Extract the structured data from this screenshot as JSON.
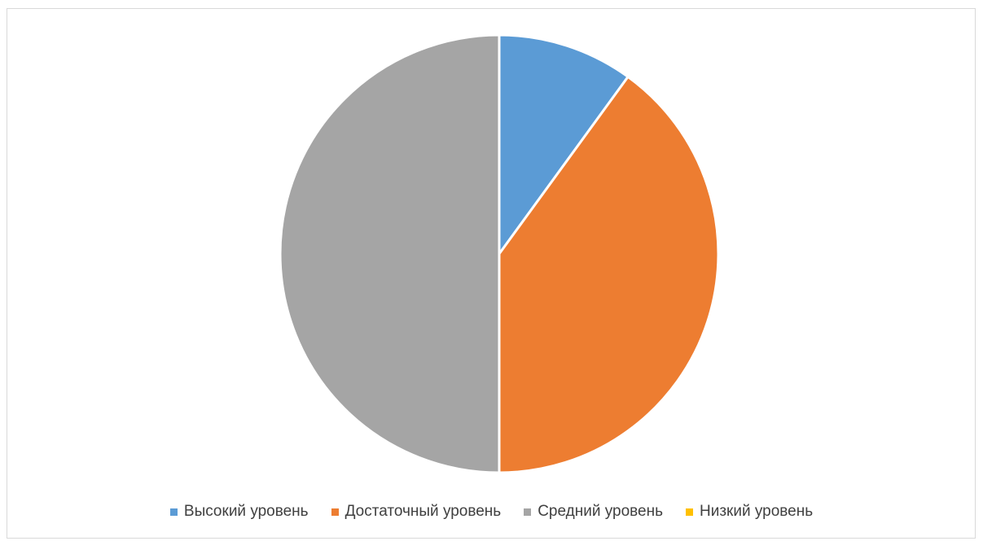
{
  "chart_data": {
    "type": "pie",
    "title": "",
    "series": [
      {
        "categories": [
          "Высокий уровень",
          "Достаточный уровень",
          "Средний уровень",
          "Низкий уровень"
        ],
        "values": [
          10,
          40,
          50,
          0
        ],
        "colors": [
          "#5B9BD5",
          "#ED7D31",
          "#A5A5A5",
          "#FFC000"
        ]
      }
    ],
    "legend": {
      "position": "bottom",
      "entries": [
        {
          "label": "Высокий уровень",
          "color": "#5B9BD5"
        },
        {
          "label": "Достаточный уровень",
          "color": "#ED7D31"
        },
        {
          "label": "Средний уровень",
          "color": "#A5A5A5"
        },
        {
          "label": "Низкий уровень",
          "color": "#FFC000"
        }
      ]
    },
    "start_angle_deg": 0,
    "direction": "clockwise"
  }
}
